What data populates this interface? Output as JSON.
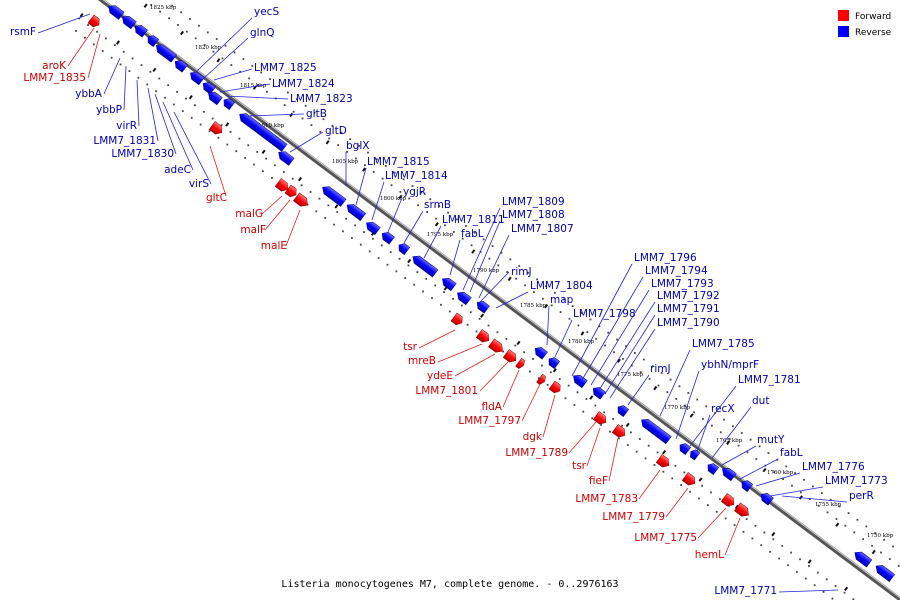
{
  "caption": "Listeria monocytogenes M7, complete genome. - 0..2976163",
  "legend": {
    "forward_label": "Forward",
    "reverse_label": "Reverse",
    "forward_color": "#ff0000",
    "reverse_color": "#0000ff"
  },
  "ticks": [
    "1825 kbp",
    "1820 kbp",
    "1815 kbp",
    "1810 kbp",
    "1805 kbp",
    "1800 kbp",
    "1795 kbp",
    "1790 kbp",
    "1785 kbp",
    "1780 kbp",
    "1775 kbp",
    "1770 kbp",
    "1765 kbp",
    "1760 kbp",
    "1755 kbp",
    "1750 kbp"
  ],
  "reverse_genes": [
    "yecS",
    "glnQ",
    "LMM7_1825",
    "LMM7_1824",
    "LMM7_1823",
    "gltB",
    "gltD",
    "bglX",
    "LMM7_1815",
    "LMM7_1814",
    "ygjR",
    "srmB",
    "LMM7_1811",
    "fabL",
    "LMM7_1809",
    "LMM7_1808",
    "LMM7_1807",
    "rimJ",
    "LMM7_1804",
    "map",
    "LMM7_1798",
    "LMM7_1796",
    "LMM7_1794",
    "LMM7_1793",
    "LMM7_1792",
    "LMM7_1791",
    "LMM7_1790",
    "rimJ",
    "LMM7_1785",
    "ybhN/mprF",
    "LMM7_1781",
    "recX",
    "dut",
    "mutY",
    "fabL",
    "LMM7_1776",
    "LMM7_1773",
    "perR",
    "LMM7_1771",
    "rsmF",
    "ybbA",
    "ybbP",
    "virR",
    "LMM7_1831",
    "LMM7_1830",
    "adeC",
    "virS"
  ],
  "forward_genes": [
    "aroK",
    "LMM7_1835",
    "gltC",
    "malG",
    "malF",
    "malE",
    "tsr",
    "mreB",
    "ydeE",
    "LMM7_1801",
    "fldA",
    "LMM7_1797",
    "dgk",
    "LMM7_1789",
    "tsr",
    "fieF",
    "LMM7_1783",
    "LMM7_1779",
    "LMM7_1775",
    "hemL"
  ]
}
